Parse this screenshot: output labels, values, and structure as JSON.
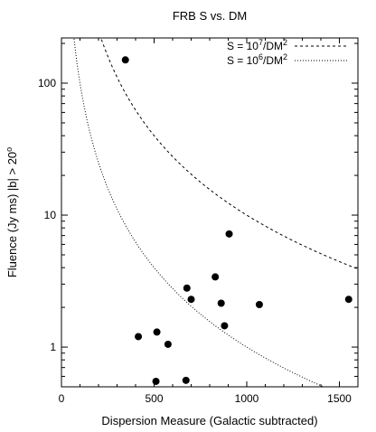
{
  "chart_data": {
    "type": "scatter",
    "title": "FRB S vs. DM",
    "xlabel": "Dispersion Measure (Galactic subtracted)",
    "ylabel": "Fluence (Jy ms) |b| > 20",
    "ylabel_sup": "o",
    "xlim": [
      0,
      1600
    ],
    "ylim": [
      0.5,
      220
    ],
    "yscale": "log",
    "xticks": [
      0,
      500,
      1000,
      1500
    ],
    "xtick_labels": [
      "0",
      "500",
      "1000",
      "1500"
    ],
    "yticks": [
      1,
      10,
      100
    ],
    "ytick_labels": [
      "1",
      "10",
      "100"
    ],
    "grid": false,
    "legend_position": "top-right",
    "points": [
      {
        "x": 345,
        "y": 150
      },
      {
        "x": 415,
        "y": 1.2
      },
      {
        "x": 515,
        "y": 1.3
      },
      {
        "x": 575,
        "y": 1.05
      },
      {
        "x": 510,
        "y": 0.55
      },
      {
        "x": 672,
        "y": 0.56
      },
      {
        "x": 677,
        "y": 2.8
      },
      {
        "x": 700,
        "y": 2.3
      },
      {
        "x": 830,
        "y": 3.4
      },
      {
        "x": 862,
        "y": 2.15
      },
      {
        "x": 880,
        "y": 1.45
      },
      {
        "x": 905,
        "y": 7.2
      },
      {
        "x": 1068,
        "y": 2.1
      },
      {
        "x": 1550,
        "y": 2.3
      }
    ],
    "curves": [
      {
        "label_base": "S = 10",
        "label_exp": "7",
        "label_tail": "/DM",
        "label_tail_exp": "2",
        "coefficient": 10000000,
        "style": "dashed"
      },
      {
        "label_base": "S = 10",
        "label_exp": "6",
        "label_tail": "/DM",
        "label_tail_exp": "2",
        "coefficient": 1000000,
        "style": "dotted"
      }
    ]
  }
}
